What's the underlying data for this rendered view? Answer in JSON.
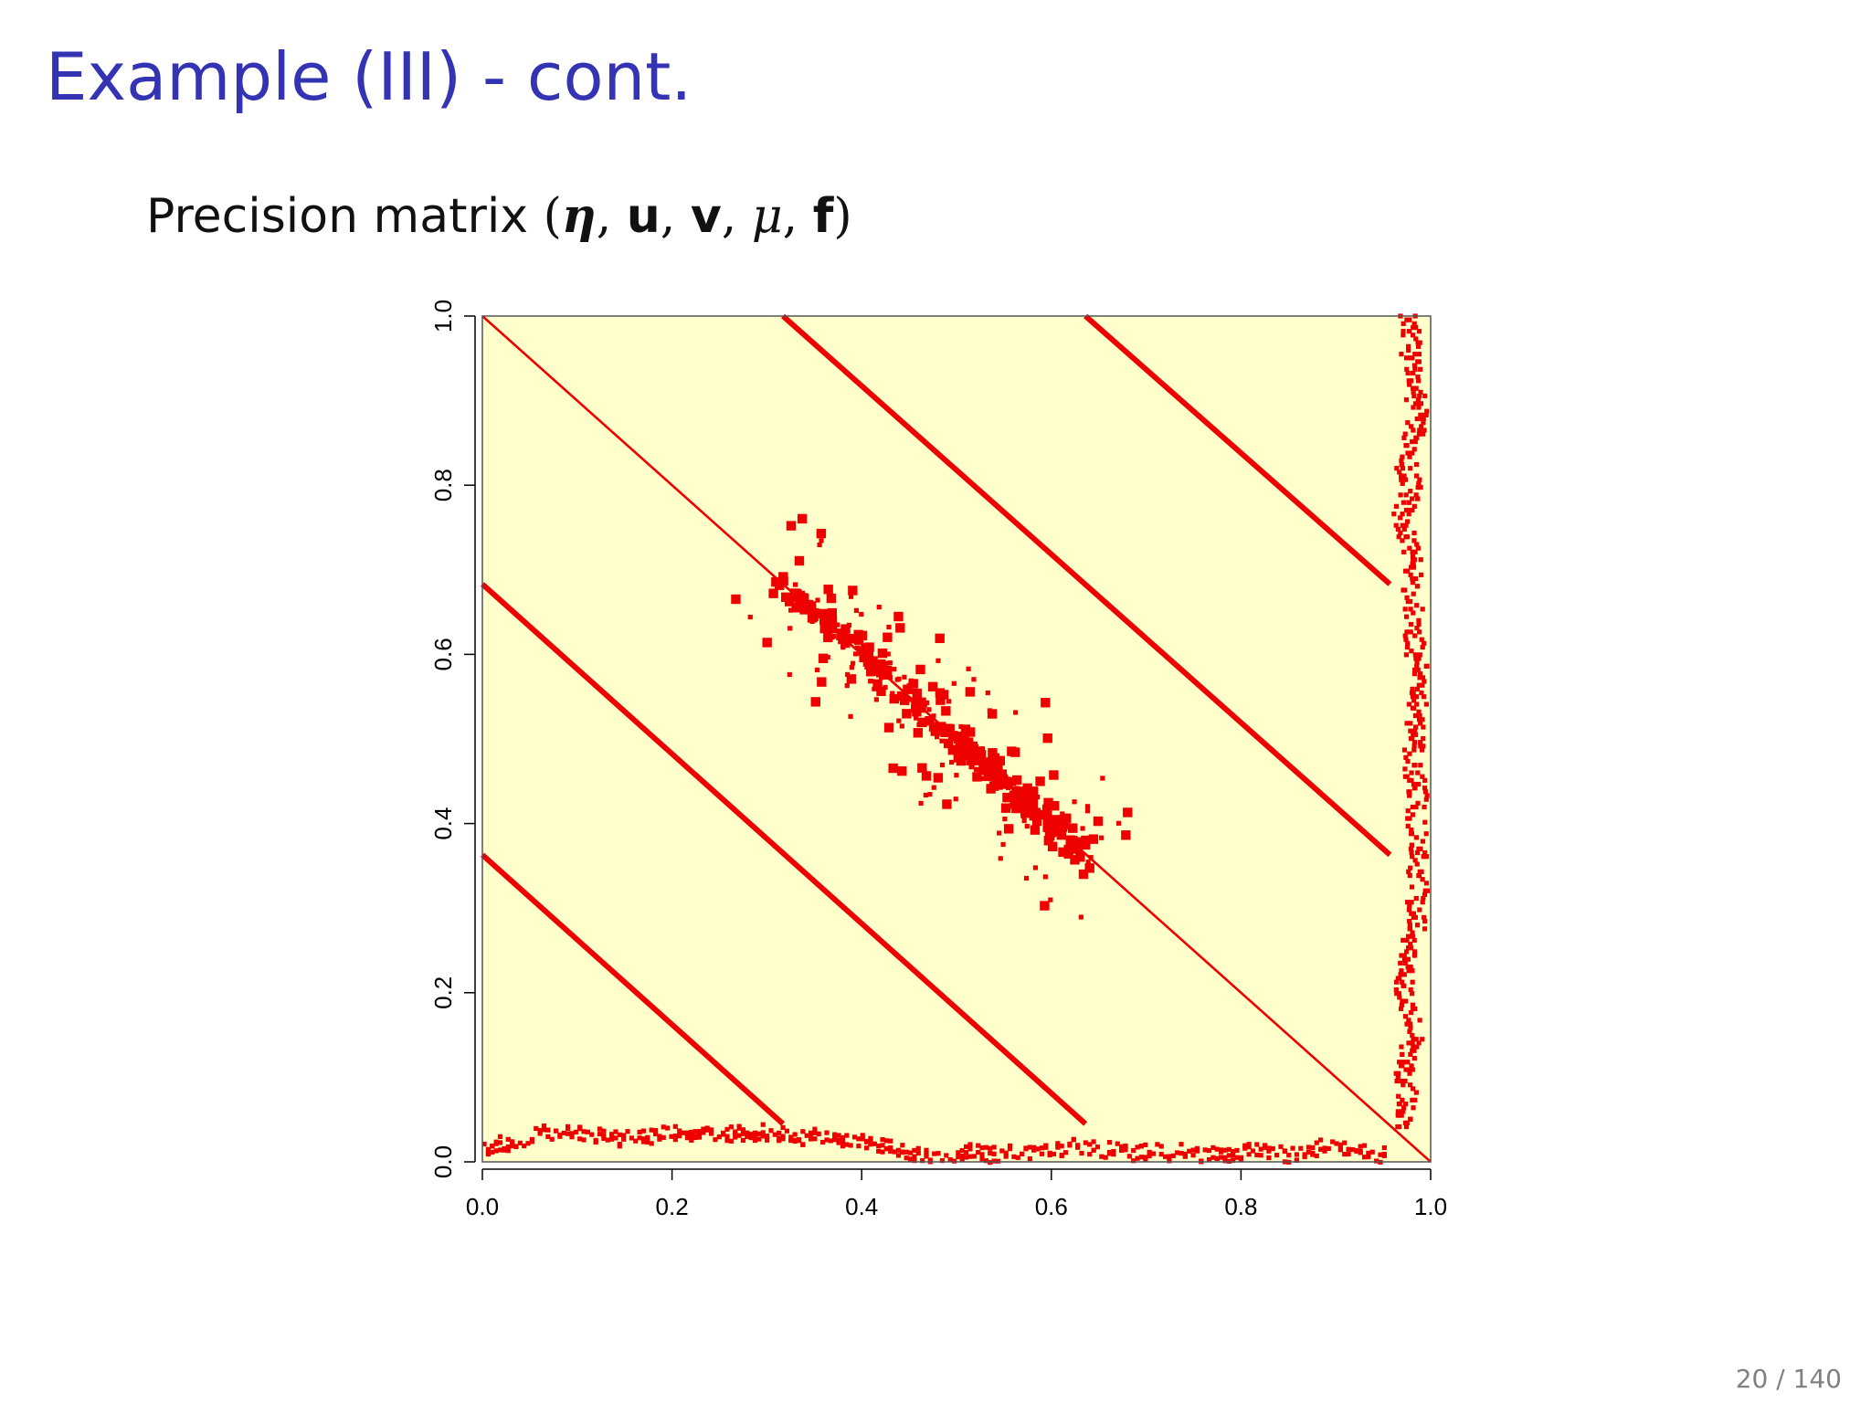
{
  "slide": {
    "title": "Example (III) - cont.",
    "subtitle_prefix": "Precision matrix ",
    "subtitle_open": "(",
    "subtitle_eta": "η",
    "subtitle_comma1": ", ",
    "subtitle_u": "u",
    "subtitle_comma2": ", ",
    "subtitle_v": "v",
    "subtitle_comma3": ", ",
    "subtitle_mu": "μ",
    "subtitle_comma4": ", ",
    "subtitle_f": "f",
    "subtitle_close": ")",
    "page_number": "20 / 140"
  },
  "chart_data": {
    "type": "heatmap",
    "title": "",
    "xlabel": "",
    "ylabel": "",
    "xlim": [
      0,
      1
    ],
    "ylim": [
      0,
      1
    ],
    "x_ticks": [
      "0.0",
      "0.2",
      "0.4",
      "0.6",
      "0.8",
      "1.0"
    ],
    "y_ticks": [
      "0.0",
      "0.2",
      "0.4",
      "0.6",
      "0.8",
      "1.0"
    ],
    "grid": false,
    "colors": {
      "background": "#ffffcc",
      "nonzero": "#ee0000"
    },
    "diagonal_bands": [
      {
        "name": "main-diagonal",
        "from": [
          0,
          1
        ],
        "to": [
          1,
          0
        ],
        "width": "thin"
      },
      {
        "name": "upper-band-1",
        "from": [
          0.317,
          1
        ],
        "to": [
          0.957,
          0.363
        ],
        "width": "thick"
      },
      {
        "name": "upper-band-2",
        "from": [
          0.636,
          1
        ],
        "to": [
          0.957,
          0.683
        ],
        "width": "thick"
      },
      {
        "name": "lower-band-1",
        "from": [
          0,
          0.683
        ],
        "to": [
          0.636,
          0.045
        ],
        "width": "thick"
      },
      {
        "name": "lower-band-2",
        "from": [
          0,
          0.363
        ],
        "to": [
          0.317,
          0.045
        ],
        "width": "thick"
      }
    ],
    "dense_diagonal_region": {
      "x_range": [
        0.32,
        0.64
      ],
      "y_range": [
        0.36,
        0.68
      ]
    },
    "dense_column": {
      "x_range": [
        0.955,
        1.0
      ],
      "y_range": [
        0.04,
        1.0
      ]
    },
    "dense_row": {
      "x_range": [
        0.0,
        0.955
      ],
      "y_range": [
        0.0,
        0.04
      ]
    }
  }
}
